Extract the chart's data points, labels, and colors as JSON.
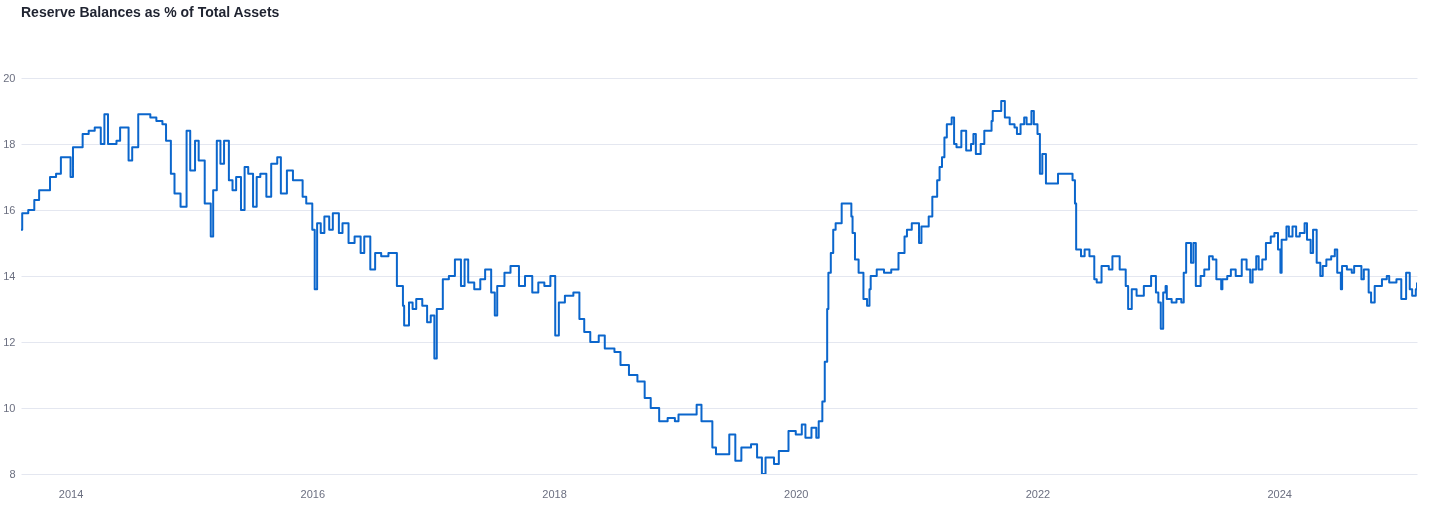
{
  "chart_data": {
    "type": "step",
    "title": "Reserve Balances as % of Total Assets",
    "color": "#0b66cc",
    "grid": "y",
    "xlim": [
      2013.59,
      2025.14
    ],
    "xticks": [
      2014,
      2016,
      2018,
      2020,
      2022,
      2024
    ],
    "ylim": [
      8,
      20
    ],
    "yticks": [
      8,
      10,
      12,
      14,
      16,
      18,
      20
    ],
    "x": [
      2013.59,
      2013.6,
      2013.65,
      2013.7,
      2013.74,
      2013.8,
      2013.83,
      2013.88,
      2013.92,
      2013.97,
      2014.0,
      2014.02,
      2014.05,
      2014.1,
      2014.15,
      2014.2,
      2014.25,
      2014.28,
      2014.31,
      2014.38,
      2014.41,
      2014.48,
      2014.51,
      2014.56,
      2014.61,
      2014.66,
      2014.71,
      2014.76,
      2014.79,
      2014.83,
      2014.86,
      2014.91,
      2014.96,
      2014.99,
      2015.03,
      2015.06,
      2015.11,
      2015.16,
      2015.18,
      2015.21,
      2015.24,
      2015.27,
      2015.31,
      2015.34,
      2015.37,
      2015.41,
      2015.44,
      2015.47,
      2015.51,
      2015.54,
      2015.57,
      2015.62,
      2015.66,
      2015.71,
      2015.74,
      2015.79,
      2015.84,
      2015.89,
      2015.92,
      2015.95,
      2016.0,
      2016.02,
      2016.04,
      2016.07,
      2016.1,
      2016.14,
      2016.17,
      2016.22,
      2016.25,
      2016.3,
      2016.35,
      2016.4,
      2016.43,
      2016.48,
      2016.52,
      2016.57,
      2016.63,
      2016.7,
      2016.75,
      2016.76,
      2016.8,
      2016.83,
      2016.86,
      2016.91,
      2016.95,
      2016.98,
      2017.01,
      2017.03,
      2017.08,
      2017.13,
      2017.18,
      2017.23,
      2017.26,
      2017.29,
      2017.34,
      2017.39,
      2017.43,
      2017.48,
      2017.51,
      2017.53,
      2017.59,
      2017.64,
      2017.71,
      2017.76,
      2017.82,
      2017.87,
      2017.92,
      2017.97,
      2018.01,
      2018.04,
      2018.09,
      2018.16,
      2018.21,
      2018.25,
      2018.3,
      2018.37,
      2018.42,
      2018.5,
      2018.55,
      2018.62,
      2018.69,
      2018.75,
      2018.8,
      2018.87,
      2018.94,
      2019.0,
      2019.03,
      2019.18,
      2019.22,
      2019.31,
      2019.34,
      2019.45,
      2019.5,
      2019.55,
      2019.63,
      2019.68,
      2019.72,
      2019.75,
      2019.82,
      2019.86,
      2019.94,
      2020.0,
      2020.05,
      2020.08,
      2020.13,
      2020.17,
      2020.19,
      2020.22,
      2020.24,
      2020.26,
      2020.27,
      2020.29,
      2020.31,
      2020.33,
      2020.38,
      2020.42,
      2020.46,
      2020.47,
      2020.49,
      2020.52,
      2020.56,
      2020.59,
      2020.61,
      2020.62,
      2020.67,
      2020.73,
      2020.79,
      2020.85,
      2020.9,
      2020.92,
      2020.96,
      2021.02,
      2021.04,
      2021.1,
      2021.13,
      2021.17,
      2021.19,
      2021.21,
      2021.23,
      2021.25,
      2021.29,
      2021.31,
      2021.33,
      2021.37,
      2021.41,
      2021.45,
      2021.47,
      2021.49,
      2021.53,
      2021.56,
      2021.62,
      2021.63,
      2021.7,
      2021.73,
      2021.77,
      2021.81,
      2021.83,
      2021.86,
      2021.89,
      2021.91,
      2021.95,
      2021.97,
      2022.0,
      2022.02,
      2022.04,
      2022.07,
      2022.15,
      2022.17,
      2022.29,
      2022.31,
      2022.32,
      2022.36,
      2022.39,
      2022.43,
      2022.47,
      2022.49,
      2022.53,
      2022.59,
      2022.62,
      2022.68,
      2022.72,
      2022.73,
      2022.75,
      2022.78,
      2022.82,
      2022.88,
      2022.94,
      2022.98,
      2023.0,
      2023.02,
      2023.04,
      2023.06,
      2023.07,
      2023.11,
      2023.15,
      2023.19,
      2023.21,
      2023.23,
      2023.27,
      2023.29,
      2023.31,
      2023.35,
      2023.38,
      2023.42,
      2023.45,
      2023.48,
      2023.52,
      2023.53,
      2023.57,
      2023.6,
      2023.64,
      2023.69,
      2023.73,
      2023.76,
      2023.78,
      2023.81,
      2023.83,
      2023.86,
      2023.89,
      2023.93,
      2023.96,
      2023.99,
      2024.01,
      2024.02,
      2024.06,
      2024.08,
      2024.11,
      2024.14,
      2024.17,
      2024.21,
      2024.23,
      2024.26,
      2024.28,
      2024.31,
      2024.34,
      2024.36,
      2024.39,
      2024.43,
      2024.46,
      2024.48,
      2024.51,
      2024.52,
      2024.56,
      2024.6,
      2024.62,
      2024.68,
      2024.7,
      2024.74,
      2024.76,
      2024.79,
      2024.83,
      2024.85,
      2024.89,
      2024.91,
      2024.97,
      2025.01,
      2025.05,
      2025.08,
      2025.1,
      2025.13,
      2025.14
    ],
    "values": [
      15.4,
      15.9,
      16.0,
      16.3,
      16.6,
      16.6,
      17.0,
      17.1,
      17.6,
      17.6,
      17.0,
      17.9,
      17.9,
      18.3,
      18.4,
      18.5,
      18.0,
      18.9,
      18.0,
      18.1,
      18.5,
      17.5,
      17.9,
      18.9,
      18.9,
      18.8,
      18.7,
      18.6,
      18.1,
      17.1,
      16.5,
      16.1,
      18.4,
      17.2,
      18.1,
      17.5,
      16.2,
      15.2,
      16.6,
      18.1,
      17.4,
      18.1,
      16.9,
      16.6,
      17.0,
      16.0,
      17.3,
      17.1,
      16.1,
      17.0,
      17.1,
      16.4,
      17.4,
      17.6,
      16.5,
      17.2,
      16.9,
      16.9,
      16.4,
      16.2,
      15.4,
      13.6,
      15.6,
      15.3,
      15.8,
      15.4,
      15.9,
      15.3,
      15.6,
      15.0,
      15.2,
      14.7,
      15.2,
      14.2,
      14.7,
      14.6,
      14.7,
      13.7,
      13.1,
      12.5,
      13.2,
      13.0,
      13.3,
      13.1,
      12.6,
      12.8,
      11.5,
      13.0,
      13.9,
      14.0,
      14.5,
      13.7,
      14.5,
      13.8,
      13.6,
      13.9,
      14.2,
      13.5,
      12.8,
      13.7,
      14.1,
      14.3,
      13.7,
      14.0,
      13.5,
      13.8,
      13.7,
      14.0,
      12.2,
      13.2,
      13.4,
      13.5,
      12.7,
      12.3,
      12.0,
      12.2,
      11.8,
      11.7,
      11.3,
      11.0,
      10.8,
      10.3,
      10.0,
      9.6,
      9.7,
      9.6,
      9.8,
      10.1,
      9.6,
      8.8,
      8.6,
      9.2,
      8.4,
      8.8,
      8.9,
      8.5,
      8.0,
      8.5,
      8.3,
      8.7,
      9.3,
      9.2,
      9.5,
      9.1,
      9.4,
      9.1,
      9.6,
      10.2,
      11.4,
      13.0,
      14.1,
      14.7,
      15.4,
      15.6,
      16.2,
      16.2,
      15.8,
      15.3,
      14.5,
      14.1,
      13.3,
      13.1,
      13.6,
      14.0,
      14.2,
      14.1,
      14.2,
      14.7,
      15.2,
      15.4,
      15.6,
      15.0,
      15.5,
      15.8,
      16.4,
      16.9,
      17.3,
      17.6,
      18.2,
      18.6,
      18.8,
      18.0,
      17.9,
      18.4,
      17.8,
      18.0,
      18.3,
      17.7,
      18.0,
      18.4,
      18.7,
      19.0,
      19.3,
      18.8,
      18.6,
      18.5,
      18.3,
      18.6,
      18.8,
      18.6,
      19.0,
      18.6,
      18.3,
      17.1,
      17.7,
      16.8,
      16.8,
      17.1,
      16.9,
      16.2,
      14.8,
      14.6,
      14.8,
      14.6,
      13.9,
      13.8,
      14.3,
      14.2,
      14.6,
      14.2,
      14.2,
      13.7,
      13.0,
      13.6,
      13.4,
      13.7,
      14.0,
      13.5,
      13.2,
      12.4,
      13.5,
      13.7,
      13.3,
      13.2,
      13.3,
      13.2,
      14.1,
      15.0,
      14.4,
      15.0,
      13.7,
      14.0,
      14.2,
      14.6,
      14.5,
      13.9,
      13.6,
      13.9,
      14.0,
      14.2,
      14.0,
      14.5,
      14.2,
      13.8,
      14.2,
      14.6,
      14.2,
      14.5,
      15.0,
      15.2,
      15.3,
      14.8,
      14.1,
      15.1,
      15.5,
      15.2,
      15.5,
      15.2,
      15.3,
      15.6,
      15.1,
      14.7,
      15.4,
      14.4,
      14.0,
      14.3,
      14.5,
      14.6,
      14.8,
      14.1,
      13.6,
      14.3,
      14.2,
      14.1,
      14.3,
      13.9,
      14.2,
      13.5,
      13.2,
      13.7,
      13.7,
      13.9,
      14.0,
      13.8,
      13.9,
      13.3,
      14.1,
      13.6,
      13.4,
      13.6,
      13.8
    ]
  }
}
